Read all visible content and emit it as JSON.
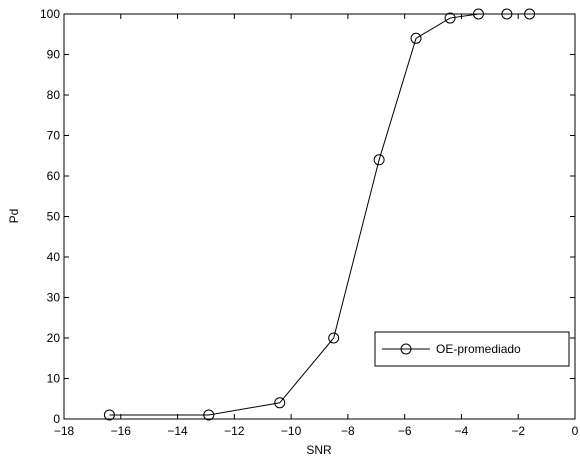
{
  "chart_data": {
    "type": "line",
    "title": "",
    "xlabel": "SNR",
    "ylabel": "Pd",
    "xlim": [
      -18,
      0
    ],
    "ylim": [
      0,
      100
    ],
    "xticks": [
      -18,
      -16,
      -14,
      -12,
      -10,
      -8,
      -6,
      -4,
      -2,
      0
    ],
    "yticks": [
      0,
      10,
      20,
      30,
      40,
      50,
      60,
      70,
      80,
      90,
      100
    ],
    "grid": false,
    "legend_position": "lower-right",
    "series": [
      {
        "name": "OE-promediado",
        "marker": "circle",
        "color": "#000000",
        "x": [
          -16.4,
          -12.9,
          -10.4,
          -8.5,
          -6.9,
          -5.6,
          -4.4,
          -3.4,
          -2.4,
          -1.6
        ],
        "y": [
          1,
          1,
          4,
          20,
          64,
          94,
          99,
          100,
          100,
          100
        ]
      }
    ]
  }
}
